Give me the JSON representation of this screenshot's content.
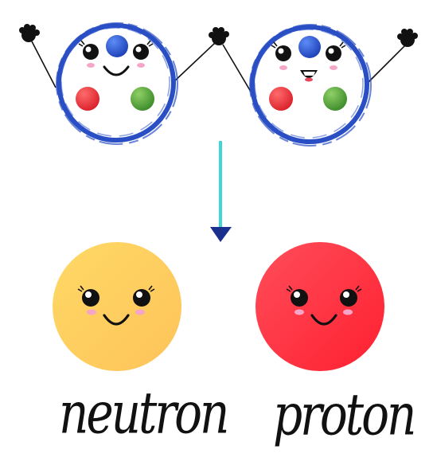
{
  "captions": {
    "left": "neutron",
    "right": "proton"
  },
  "colors": {
    "ring": "#2a4fc4",
    "arrow_line": "#3fd6d8",
    "arrow_head": "#1b2f8f",
    "blue_particle": "#2a5bd9",
    "red_particle": "#ee3b3b",
    "green_particle": "#5aa63a",
    "neutron_fill": "#ffd24a",
    "proton_fill": "#ff3b3b",
    "blush": "#f5a6c8",
    "ink": "#111111"
  },
  "icons": {
    "left_hand": "waving-hand-icon",
    "right_hand": "waving-hand-icon"
  }
}
